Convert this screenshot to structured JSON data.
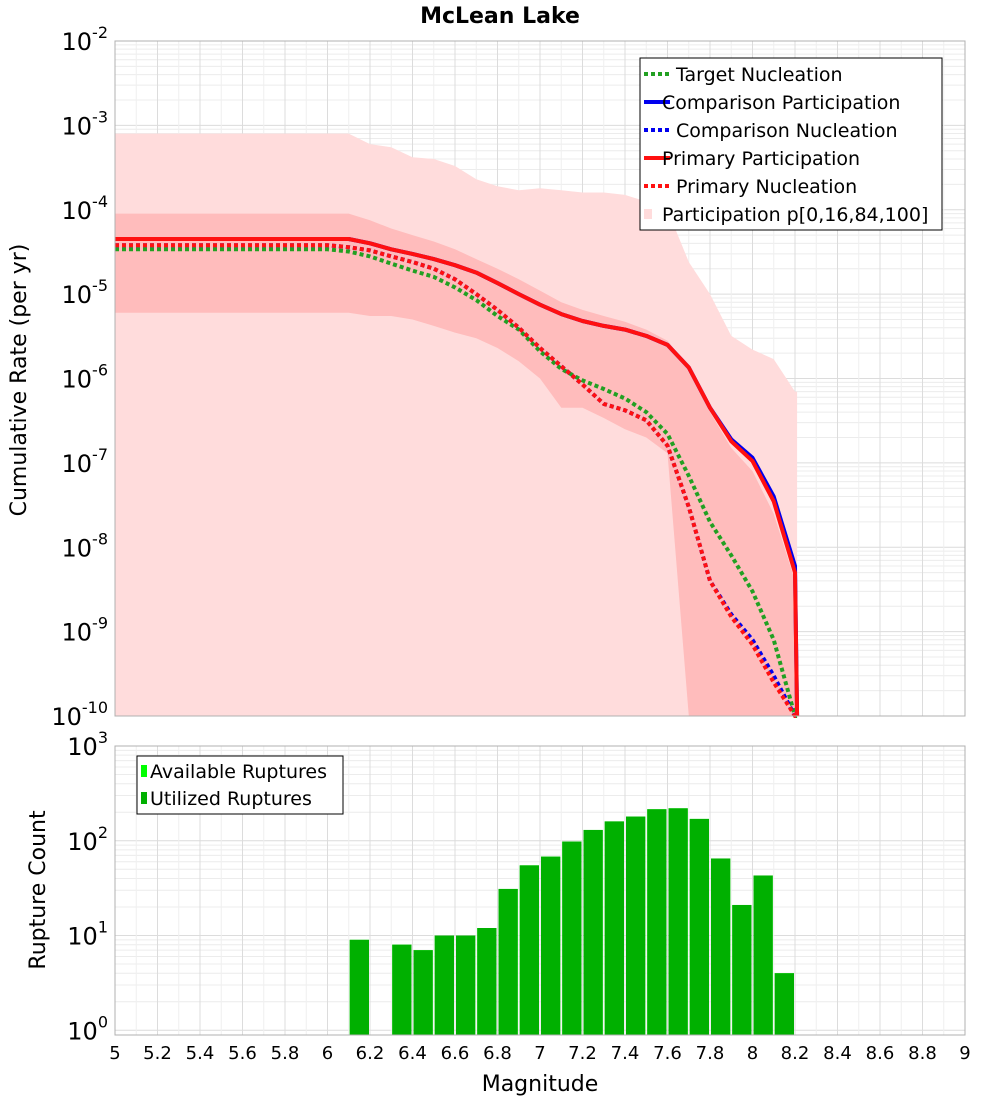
{
  "title": "McLean Lake",
  "colors": {
    "target": "#22a022",
    "comparison": "#0000ee",
    "primary": "#ff1010",
    "band_outer": "#ffdcdc",
    "band_inner": "#ffbcbc",
    "bar_available": "#00ff00",
    "bar_utilized": "#00b000"
  },
  "chart_data": [
    {
      "type": "line",
      "name": "rate-panel",
      "ylabel": "Cumulative Rate (per yr)",
      "xlim": [
        5,
        9
      ],
      "ylim_exp": [
        -10,
        -2
      ],
      "ytick_labels": [
        {
          "base": "10",
          "exp": "-10"
        },
        {
          "base": "10",
          "exp": "-9"
        },
        {
          "base": "10",
          "exp": "-8"
        },
        {
          "base": "10",
          "exp": "-7"
        },
        {
          "base": "10",
          "exp": "-6"
        },
        {
          "base": "10",
          "exp": "-5"
        },
        {
          "base": "10",
          "exp": "-4"
        },
        {
          "base": "10",
          "exp": "-3"
        },
        {
          "base": "10",
          "exp": "-2"
        }
      ],
      "legend_position": "top-right",
      "legend": [
        {
          "label": "Target Nucleation",
          "color": "#22a022",
          "style": "dotted"
        },
        {
          "label": "Comparison Participation",
          "color": "#0000ee",
          "style": "solid"
        },
        {
          "label": "Comparison Nucleation",
          "color": "#0000ee",
          "style": "dotted"
        },
        {
          "label": "Primary Participation",
          "color": "#ff1010",
          "style": "solid"
        },
        {
          "label": "Primary Nucleation",
          "color": "#ff1010",
          "style": "dotted"
        },
        {
          "label": "Participation p[0,16,84,100]",
          "color": "#ffdcdc",
          "style": "patch"
        }
      ],
      "bands": [
        {
          "name": "p0-p100",
          "x": [
            5.0,
            6.1,
            6.2,
            6.3,
            6.4,
            6.5,
            6.6,
            6.7,
            6.8,
            6.9,
            7.0,
            7.1,
            7.2,
            7.3,
            7.4,
            7.5,
            7.6,
            7.7,
            7.8,
            7.9,
            8.0,
            8.1,
            8.2,
            8.21
          ],
          "hi": [
            0.0008,
            0.0008,
            0.0006,
            0.00055,
            0.00042,
            0.0004,
            0.00033,
            0.00023,
            0.00019,
            0.00017,
            0.00018,
            0.00017,
            0.00016,
            0.00016,
            0.00015,
            0.000125,
            0.0001,
            2.4e-05,
            1e-05,
            3.2e-06,
            2.2e-06,
            1.7e-06,
            7e-07,
            7e-07
          ],
          "lo": [
            1e-10,
            1e-10,
            1e-10,
            1e-10,
            1e-10,
            1e-10,
            1e-10,
            1e-10,
            1e-10,
            1e-10,
            1e-10,
            1e-10,
            1e-10,
            1e-10,
            1e-10,
            1e-10,
            1e-10,
            1e-10,
            1e-10,
            1e-10,
            1e-10,
            1e-10,
            1e-10,
            1e-10
          ]
        },
        {
          "name": "p16-p84",
          "x": [
            5.0,
            6.0,
            6.1,
            6.2,
            6.3,
            6.4,
            6.5,
            6.6,
            6.7,
            6.8,
            6.9,
            7.0,
            7.1,
            7.2,
            7.3,
            7.4,
            7.5,
            7.6,
            7.7,
            7.8,
            7.9,
            8.0,
            8.1,
            8.2,
            8.21
          ],
          "hi": [
            9e-05,
            9e-05,
            9e-05,
            7.5e-05,
            6e-05,
            5e-05,
            4.2e-05,
            3.4e-05,
            2.6e-05,
            2e-05,
            1.5e-05,
            1.1e-05,
            8e-06,
            6.5e-06,
            5.5e-06,
            4.7e-06,
            3.8e-06,
            2.8e-06,
            1.4e-06,
            4e-07,
            1.5e-07,
            8e-08,
            2.5e-08,
            4e-09,
            1e-10
          ],
          "lo": [
            6e-06,
            6e-06,
            6e-06,
            5.5e-06,
            5.5e-06,
            5e-06,
            4.2e-06,
            3.5e-06,
            3e-06,
            2.3e-06,
            1.6e-06,
            1e-06,
            4.5e-07,
            4.5e-07,
            3.4e-07,
            2.5e-07,
            2e-07,
            1.3e-07,
            1e-10,
            1e-10,
            1e-10,
            1e-10,
            1e-10,
            1e-10,
            1e-10
          ]
        }
      ],
      "series": [
        {
          "name": "Target Nucleation",
          "color": "#22a022",
          "style": "dotted",
          "x": [
            5.0,
            6.0,
            6.1,
            6.2,
            6.3,
            6.4,
            6.5,
            6.6,
            6.7,
            6.8,
            6.9,
            7.0,
            7.1,
            7.2,
            7.3,
            7.4,
            7.5,
            7.6,
            7.7,
            7.8,
            7.9,
            8.0,
            8.1,
            8.2,
            8.21
          ],
          "y": [
            3.4e-05,
            3.4e-05,
            3.2e-05,
            2.8e-05,
            2.3e-05,
            1.9e-05,
            1.6e-05,
            1.2e-05,
            8.5e-06,
            5.5e-06,
            3.8e-06,
            2.1e-06,
            1.3e-06,
            9.5e-07,
            7.5e-07,
            5.8e-07,
            4e-07,
            2.2e-07,
            7e-08,
            2e-08,
            8e-09,
            3e-09,
            8e-10,
            1e-10,
            1e-10
          ]
        },
        {
          "name": "Comparison Nucleation",
          "color": "#0000ee",
          "style": "dotted",
          "x": [
            5.0,
            6.0,
            6.1,
            6.2,
            6.3,
            6.4,
            6.5,
            6.6,
            6.7,
            6.8,
            6.9,
            7.0,
            7.1,
            7.2,
            7.3,
            7.4,
            7.5,
            7.6,
            7.7,
            7.8,
            7.9,
            8.0,
            8.1,
            8.2,
            8.21
          ],
          "y": [
            3.8e-05,
            3.8e-05,
            3.6e-05,
            3.3e-05,
            2.8e-05,
            2.4e-05,
            2e-05,
            1.5e-05,
            1e-05,
            6.5e-06,
            4e-06,
            2.3e-06,
            1.4e-06,
            8.5e-07,
            5e-07,
            4.2e-07,
            3.2e-07,
            1.6e-07,
            3e-08,
            4e-09,
            1.6e-09,
            8e-10,
            3e-10,
            1e-10,
            1e-10
          ]
        },
        {
          "name": "Primary Nucleation",
          "color": "#ff1010",
          "style": "dotted",
          "x": [
            5.0,
            6.0,
            6.1,
            6.2,
            6.3,
            6.4,
            6.5,
            6.6,
            6.7,
            6.8,
            6.9,
            7.0,
            7.1,
            7.2,
            7.3,
            7.4,
            7.5,
            7.6,
            7.7,
            7.8,
            7.9,
            8.0,
            8.1,
            8.2,
            8.21
          ],
          "y": [
            3.8e-05,
            3.8e-05,
            3.6e-05,
            3.3e-05,
            2.8e-05,
            2.4e-05,
            2e-05,
            1.5e-05,
            1e-05,
            6.5e-06,
            4e-06,
            2.3e-06,
            1.4e-06,
            8.5e-07,
            5e-07,
            4.2e-07,
            3.2e-07,
            1.6e-07,
            3e-08,
            4e-09,
            1.5e-09,
            7e-10,
            2.5e-10,
            1e-10,
            1e-10
          ]
        },
        {
          "name": "Comparison Participation",
          "color": "#0000ee",
          "style": "solid",
          "x": [
            5.0,
            6.0,
            6.1,
            6.2,
            6.3,
            6.4,
            6.5,
            6.6,
            6.7,
            6.8,
            6.9,
            7.0,
            7.1,
            7.2,
            7.3,
            7.4,
            7.5,
            7.6,
            7.7,
            7.8,
            7.9,
            8.0,
            8.1,
            8.2,
            8.21
          ],
          "y": [
            4.5e-05,
            4.5e-05,
            4.5e-05,
            4e-05,
            3.4e-05,
            3e-05,
            2.6e-05,
            2.2e-05,
            1.8e-05,
            1.35e-05,
            1e-05,
            7.5e-06,
            5.8e-06,
            4.8e-06,
            4.2e-06,
            3.8e-06,
            3.2e-06,
            2.5e-06,
            1.35e-06,
            4.5e-07,
            1.9e-07,
            1.15e-07,
            4e-08,
            6e-09,
            1e-10
          ]
        },
        {
          "name": "Primary Participation",
          "color": "#ff1010",
          "style": "solid",
          "x": [
            5.0,
            6.0,
            6.1,
            6.2,
            6.3,
            6.4,
            6.5,
            6.6,
            6.7,
            6.8,
            6.9,
            7.0,
            7.1,
            7.2,
            7.3,
            7.4,
            7.5,
            7.6,
            7.7,
            7.8,
            7.9,
            8.0,
            8.1,
            8.2,
            8.21
          ],
          "y": [
            4.5e-05,
            4.5e-05,
            4.5e-05,
            4e-05,
            3.4e-05,
            3e-05,
            2.6e-05,
            2.2e-05,
            1.8e-05,
            1.35e-05,
            1e-05,
            7.5e-06,
            5.8e-06,
            4.8e-06,
            4.2e-06,
            3.8e-06,
            3.2e-06,
            2.5e-06,
            1.35e-06,
            4.5e-07,
            1.8e-07,
            1.05e-07,
            3.5e-08,
            5e-09,
            1e-10
          ]
        }
      ]
    },
    {
      "type": "bar",
      "name": "count-panel",
      "ylabel": "Rupture Count",
      "xlabel": "Magnitude",
      "xlim": [
        5,
        9
      ],
      "ylim_exp": [
        -0.05,
        3
      ],
      "ytick_labels": [
        {
          "base": "10",
          "exp": "0"
        },
        {
          "base": "10",
          "exp": "1"
        },
        {
          "base": "10",
          "exp": "2"
        },
        {
          "base": "10",
          "exp": "3"
        }
      ],
      "xtick_labels": [
        "5",
        "5.2",
        "5.4",
        "5.6",
        "5.8",
        "6",
        "6.2",
        "6.4",
        "6.6",
        "6.8",
        "7",
        "7.2",
        "7.4",
        "7.6",
        "7.8",
        "8",
        "8.2",
        "8.4",
        "8.6",
        "8.8",
        "9"
      ],
      "legend_position": "top-left",
      "legend": [
        {
          "label": "Available Ruptures",
          "color": "#00ff00"
        },
        {
          "label": "Utilized Ruptures",
          "color": "#00b000"
        }
      ],
      "bin_width": 0.1,
      "bins": [
        6.15,
        6.35,
        6.45,
        6.55,
        6.65,
        6.75,
        6.85,
        6.95,
        7.05,
        7.15,
        7.25,
        7.35,
        7.45,
        7.55,
        7.65,
        7.75,
        7.85,
        7.95,
        8.05,
        8.15
      ],
      "available": [
        9,
        8,
        7,
        10,
        10,
        12,
        31,
        55,
        68,
        98,
        130,
        160,
        180,
        215,
        220,
        170,
        65,
        21,
        43,
        4
      ],
      "utilized": [
        9,
        8,
        7,
        10,
        10,
        12,
        31,
        55,
        68,
        98,
        130,
        160,
        180,
        215,
        220,
        170,
        65,
        21,
        43,
        4
      ]
    }
  ]
}
